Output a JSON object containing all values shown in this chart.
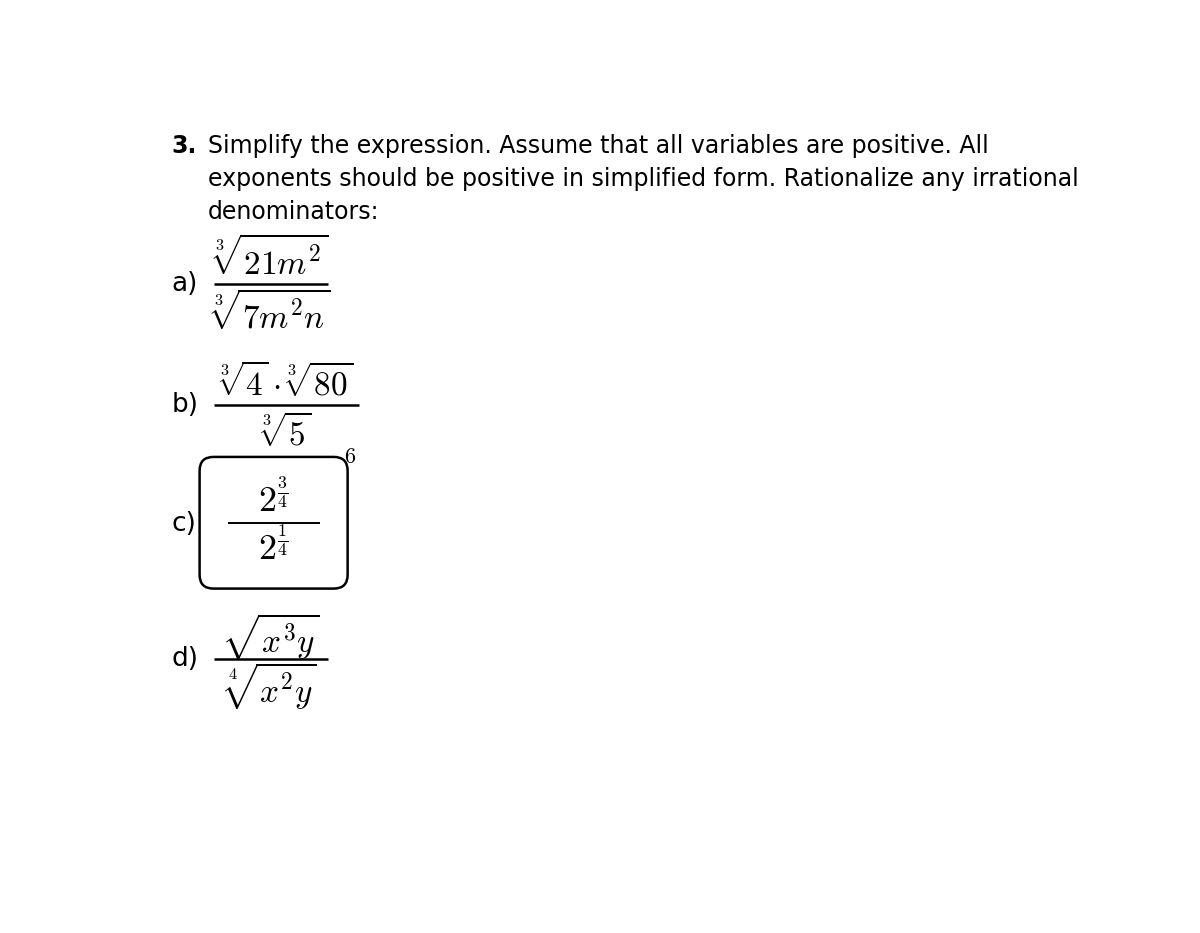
{
  "bg_color": "#ffffff",
  "text_color": "#000000",
  "title_number": "3.",
  "title_line1": "Simplify the expression. Assume that all variables are positive. All",
  "title_line2": "exponents should be positive in simplified form. Rationalize any irrational",
  "title_line3": "denominators:",
  "label_a": "a)",
  "label_b": "b)",
  "label_c": "c)",
  "label_d": "d)",
  "expr_a_num": "$\\sqrt[3]{21m^2}$",
  "expr_a_den": "$\\sqrt[3]{7m^2n}$",
  "expr_b_num": "$\\sqrt[3]{4} \\cdot \\sqrt[3]{80}$",
  "expr_b_den": "$\\sqrt[3]{5}$",
  "expr_c_num": "$2^{\\frac{3}{4}}$",
  "expr_c_den": "$2^{\\frac{1}{4}}$",
  "expr_c_exp": "$6$",
  "expr_d_num": "$\\sqrt{x^3y}$",
  "expr_d_den": "$\\sqrt[4]{x^2y}$",
  "title_fs": 17,
  "label_fs": 19,
  "math_fs": 24,
  "math_fs_c": 26
}
